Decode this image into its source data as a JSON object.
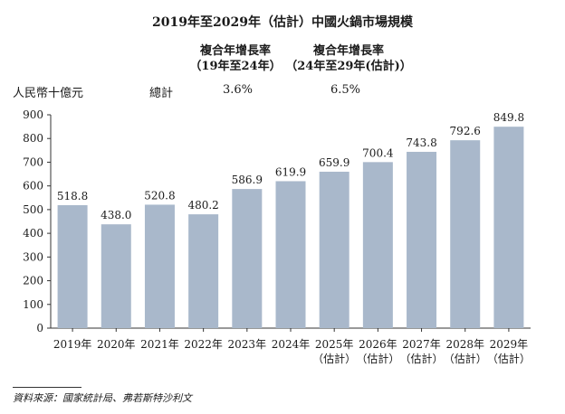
{
  "header": {
    "title": "2019年至2029年（估計）中國火鍋市場規模",
    "cagr_col1_line1": "複合年增長率",
    "cagr_col1_line2": "（19年至24年）",
    "cagr_col2_line1": "複合年增長率",
    "cagr_col2_line2": "（24年至29年(估計)）",
    "unit": "人民幣十億元",
    "row_label": "總計",
    "cagr_19_24": "3.6%",
    "cagr_24_29": "6.5%"
  },
  "chart_data": {
    "type": "bar",
    "title": "2019年至2029年（估計）中國火鍋市場規模",
    "categories": [
      [
        "2019年"
      ],
      [
        "2020年"
      ],
      [
        "2021年"
      ],
      [
        "2022年"
      ],
      [
        "2023年"
      ],
      [
        "2024年"
      ],
      [
        "2025年",
        "（估計）"
      ],
      [
        "2026年",
        "（估計）"
      ],
      [
        "2027年",
        "（估計）"
      ],
      [
        "2028年",
        "（估計）"
      ],
      [
        "2029年",
        "（估計）"
      ]
    ],
    "values": [
      518.8,
      438.0,
      520.8,
      480.2,
      586.9,
      619.9,
      659.9,
      700.4,
      743.8,
      792.6,
      849.8
    ],
    "value_labels": [
      "518.8",
      "438.0",
      "520.8",
      "480.2",
      "586.9",
      "619.9",
      "659.9",
      "700.4",
      "743.8",
      "792.6",
      "849.8"
    ],
    "ylim": [
      0,
      900
    ],
    "yticks": [
      0,
      100,
      200,
      300,
      400,
      500,
      600,
      700,
      800,
      900
    ],
    "ylabel": "人民幣十億元",
    "xlabel": "",
    "grid": false,
    "bar_color": "#a9b8cb"
  },
  "footer": {
    "source": "資料來源：國家統計局、弗若斯特沙利文"
  }
}
